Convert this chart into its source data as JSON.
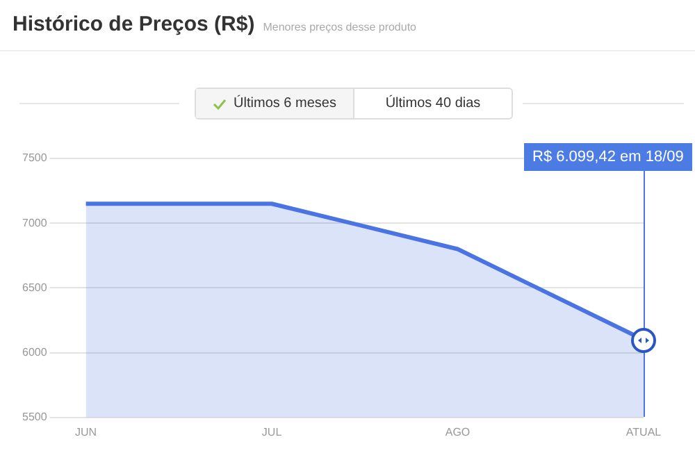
{
  "chart_data": {
    "type": "area",
    "title": "Histórico de Preços (R$)",
    "subtitle": "Menores preços desse produto",
    "categories": [
      "JUN",
      "JUL",
      "AGO",
      "ATUAL"
    ],
    "series": [
      {
        "color": "#4a73e3",
        "values": [
          7150,
          7150,
          6800,
          6099.42
        ]
      }
    ],
    "ylim": [
      5500,
      7500
    ],
    "yticks": [
      5500,
      6000,
      6500,
      7000,
      7500
    ],
    "grid": "y",
    "legend": false,
    "marker": "none",
    "annotations": [
      "Últimos 6 meses",
      "Últimos 40 dias",
      "R$ 6.099,42 em 18/09"
    ]
  }
}
